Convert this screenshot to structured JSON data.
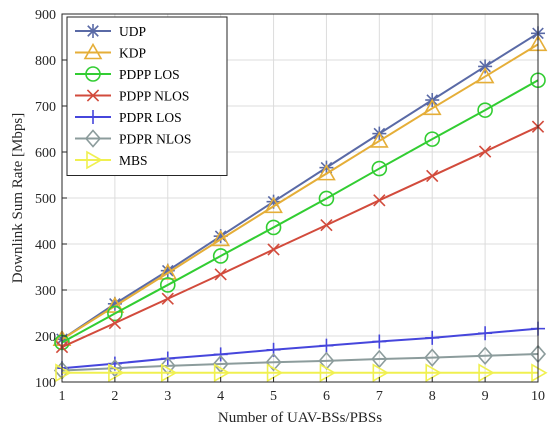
{
  "chart_data": {
    "type": "line",
    "title": "",
    "xlabel": "Number of UAV-BSs/PBSs",
    "ylabel": "Downlink Sum Rate [Mbps]",
    "x": [
      1,
      2,
      3,
      4,
      5,
      6,
      7,
      8,
      9,
      10
    ],
    "xlim": [
      1,
      10
    ],
    "ylim": [
      100,
      900
    ],
    "xticks": [
      "1",
      "2",
      "3",
      "4",
      "5",
      "6",
      "7",
      "8",
      "9",
      "10"
    ],
    "yticks": [
      "100",
      "200",
      "300",
      "400",
      "500",
      "600",
      "700",
      "800",
      "900"
    ],
    "grid": true,
    "legend_position": "top-left",
    "series": [
      {
        "name": "UDP",
        "color": "#5a6aa6",
        "marker": "asterisk",
        "values": [
          193,
          270,
          342,
          417,
          492,
          566,
          640,
          713,
          786,
          858
        ]
      },
      {
        "name": "KDP",
        "color": "#e5ae38",
        "marker": "triangle",
        "values": [
          193,
          265,
          337,
          410,
          482,
          553,
          624,
          695,
          764,
          834
        ]
      },
      {
        "name": "PDPP LOS",
        "color": "#32cd32",
        "marker": "circle",
        "values": [
          186,
          249,
          311,
          374,
          436,
          499,
          564,
          628,
          691,
          756
        ]
      },
      {
        "name": "PDPP NLOS",
        "color": "#d24b3c",
        "marker": "x",
        "values": [
          176,
          228,
          281,
          334,
          388,
          441,
          495,
          548,
          601,
          655
        ]
      },
      {
        "name": "PDPR LOS",
        "color": "#4646dc",
        "marker": "plus",
        "values": [
          130,
          140,
          151,
          160,
          170,
          179,
          188,
          196,
          206,
          216
        ]
      },
      {
        "name": "PDPR NLOS",
        "color": "#8c9c9c",
        "marker": "diamond",
        "values": [
          125,
          130,
          135,
          139,
          143,
          146,
          150,
          153,
          157,
          161
        ]
      },
      {
        "name": "MBS",
        "color": "#f0f050",
        "marker": "triangle-right",
        "values": [
          120,
          120,
          120,
          120,
          120,
          120,
          120,
          120,
          120,
          120
        ]
      }
    ]
  }
}
